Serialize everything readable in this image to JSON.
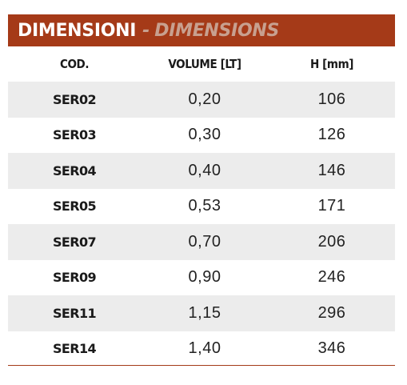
{
  "header": {
    "title_it": "DIMENSIONI",
    "separator": "-",
    "title_en": "DIMENSIONS",
    "bar_color": "#a53a18",
    "subtitle_color": "#c8a08f"
  },
  "table": {
    "columns": [
      "COD.",
      "VOLUME [LT]",
      "H [mm]"
    ],
    "rows": [
      {
        "code": "SER02",
        "volume": "0,20",
        "h": "106"
      },
      {
        "code": "SER03",
        "volume": "0,30",
        "h": "126"
      },
      {
        "code": "SER04",
        "volume": "0,40",
        "h": "146"
      },
      {
        "code": "SER05",
        "volume": "0,53",
        "h": "171"
      },
      {
        "code": "SER07",
        "volume": "0,70",
        "h": "206"
      },
      {
        "code": "SER09",
        "volume": "0,90",
        "h": "246"
      },
      {
        "code": "SER11",
        "volume": "1,15",
        "h": "296"
      },
      {
        "code": "SER14",
        "volume": "1,40",
        "h": "346"
      }
    ],
    "shaded_row_color": "#ececec"
  }
}
